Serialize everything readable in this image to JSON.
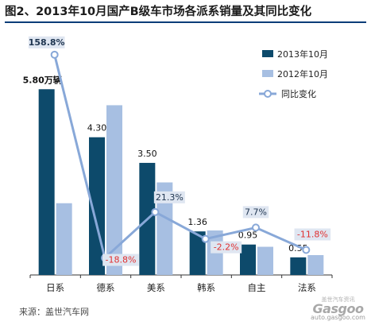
{
  "title": "图2、2013年10月国产B级车市场各派系销量及其同比变化",
  "source": "来源：盖世汽车网",
  "watermark": {
    "logo": "Gasgoo",
    "sub": "盖世汽车资讯",
    "url": "auto.gasgoo.com"
  },
  "colors": {
    "series_2013": "#0d4a6b",
    "series_2012": "#a7bfe2",
    "yoy_line": "#88a8d8",
    "label_bg": "#dfe6f1",
    "negative_text": "#e03030",
    "positive_text": "#1f3550",
    "title_rule": "#0a3d78"
  },
  "chart_data": {
    "type": "bar",
    "categories": [
      "日系",
      "德系",
      "美系",
      "韩系",
      "自主",
      "法系"
    ],
    "series": [
      {
        "name": "2013年10月",
        "values": [
          5.8,
          4.3,
          3.5,
          1.36,
          0.95,
          0.55
        ],
        "labels": [
          "5.80万辆",
          "4.30",
          "3.50",
          "1.36",
          "0.95",
          "0.55"
        ]
      },
      {
        "name": "2012年10月",
        "values": [
          2.24,
          5.3,
          2.89,
          1.39,
          0.88,
          0.62
        ]
      }
    ],
    "line_series": {
      "name": "同比变化",
      "values": [
        158.8,
        -18.8,
        21.3,
        -2.2,
        7.7,
        -11.8
      ],
      "labels": [
        "158.8%",
        "-18.8%",
        "21.3%",
        "-2.2%",
        "7.7%",
        "-11.8%"
      ]
    },
    "legend": {
      "position": "top-right"
    },
    "grid": false
  }
}
